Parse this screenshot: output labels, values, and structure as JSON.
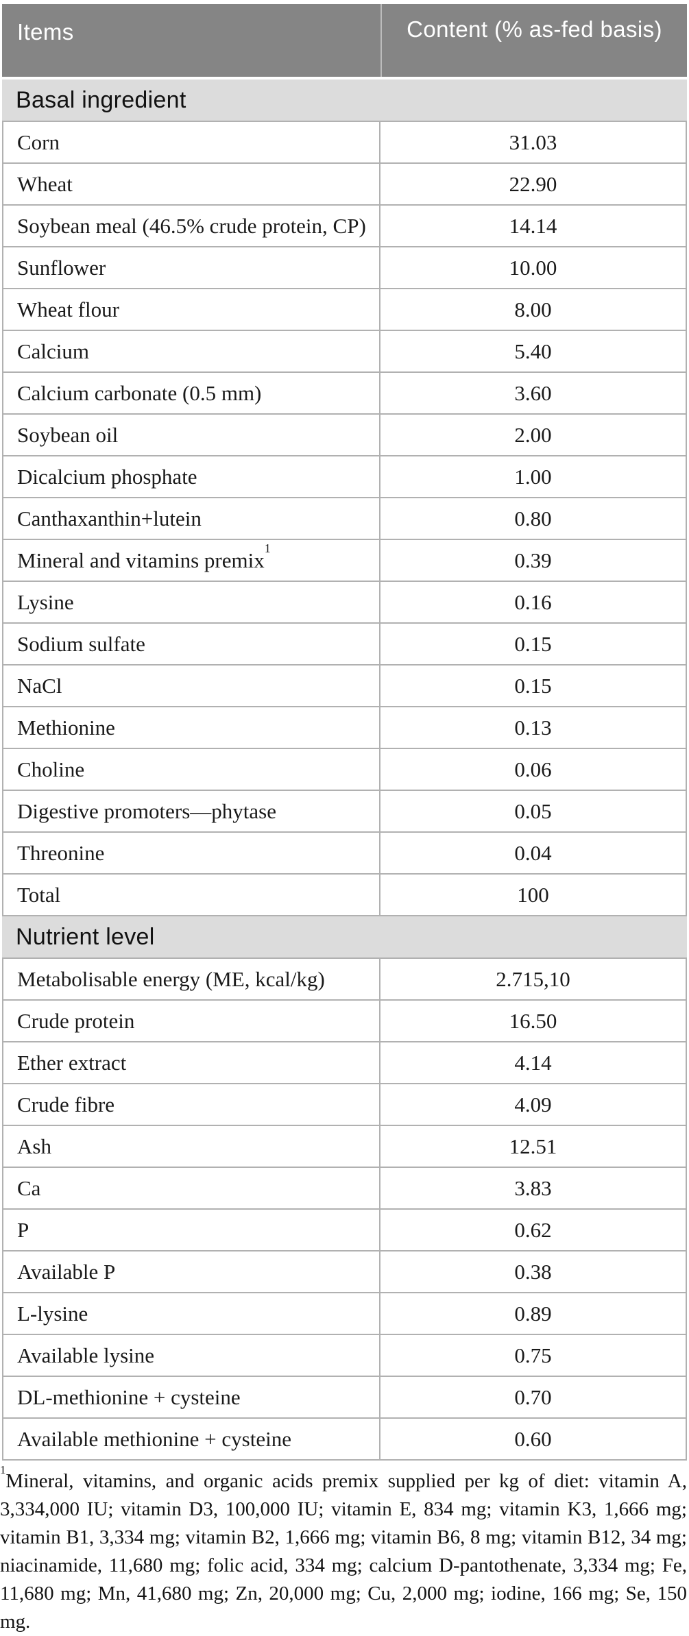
{
  "table": {
    "header": {
      "items_label": "Items",
      "content_label": "Content (% as-fed basis)"
    },
    "sections": [
      {
        "title": "Basal ingredient",
        "rows": [
          {
            "item": "Corn",
            "value": "31.03"
          },
          {
            "item": "Wheat",
            "value": "22.90"
          },
          {
            "item": "Soybean meal (46.5% crude protein, CP)",
            "value": "14.14"
          },
          {
            "item": "Sunflower",
            "value": "10.00"
          },
          {
            "item": "Wheat flour",
            "value": "8.00"
          },
          {
            "item": "Calcium",
            "value": "5.40"
          },
          {
            "item": "Calcium carbonate (0.5 mm)",
            "value": "3.60"
          },
          {
            "item": "Soybean oil",
            "value": "2.00"
          },
          {
            "item": "Dicalcium phosphate",
            "value": "1.00"
          },
          {
            "item": "Canthaxanthin+lutein",
            "value": "0.80"
          },
          {
            "item": "Mineral and vitamins premix",
            "item_sup": "1",
            "value": "0.39"
          },
          {
            "item": "Lysine",
            "value": "0.16"
          },
          {
            "item": "Sodium sulfate",
            "value": "0.15"
          },
          {
            "item": "NaCl",
            "value": "0.15"
          },
          {
            "item": "Methionine",
            "value": "0.13"
          },
          {
            "item": "Choline",
            "value": "0.06"
          },
          {
            "item": "Digestive promoters—phytase",
            "value": "0.05"
          },
          {
            "item": "Threonine",
            "value": "0.04"
          },
          {
            "item": "Total",
            "value": "100"
          }
        ]
      },
      {
        "title": "Nutrient level",
        "rows": [
          {
            "item": "Metabolisable energy (ME, kcal/kg)",
            "value": "2.715,10"
          },
          {
            "item": "Crude protein",
            "value": "16.50"
          },
          {
            "item": "Ether extract",
            "value": "4.14"
          },
          {
            "item": "Crude fibre",
            "value": "4.09"
          },
          {
            "item": "Ash",
            "value": "12.51"
          },
          {
            "item": "Ca",
            "value": "3.83"
          },
          {
            "item": "P",
            "value": "0.62"
          },
          {
            "item": "Available P",
            "value": "0.38"
          },
          {
            "item": "L-lysine",
            "value": "0.89"
          },
          {
            "item": "Available lysine",
            "value": "0.75"
          },
          {
            "item": "DL-methionine + cysteine",
            "value": "0.70"
          },
          {
            "item": "Available methionine + cysteine",
            "value": "0.60"
          }
        ]
      }
    ],
    "footnote": {
      "sup": "1",
      "text": "Mineral, vitamins, and organic acids premix supplied per kg of diet: vitamin A, 3,334,000 IU; vitamin D3, 100,000 IU; vitamin E, 834 mg; vitamin K3, 1,666 mg; vitamin B1, 3,334 mg; vitamin B2, 1,666 mg; vitamin B6, 8 mg; vitamin B12, 34 mg; niacinamide, 11,680 mg; folic acid, 334 mg; calcium D-pantothenate, 3,334 mg; Fe, 11,680 mg; Mn, 41,680 mg; Zn, 20,000 mg; Cu, 2,000 mg; iodine, 166 mg; Se, 150 mg."
    },
    "colors": {
      "header_bg": "#858585",
      "section_bg": "#dcdcdc",
      "border": "#b1b1b1",
      "header_text": "#ffffff",
      "body_text": "#1a1a1a"
    }
  }
}
